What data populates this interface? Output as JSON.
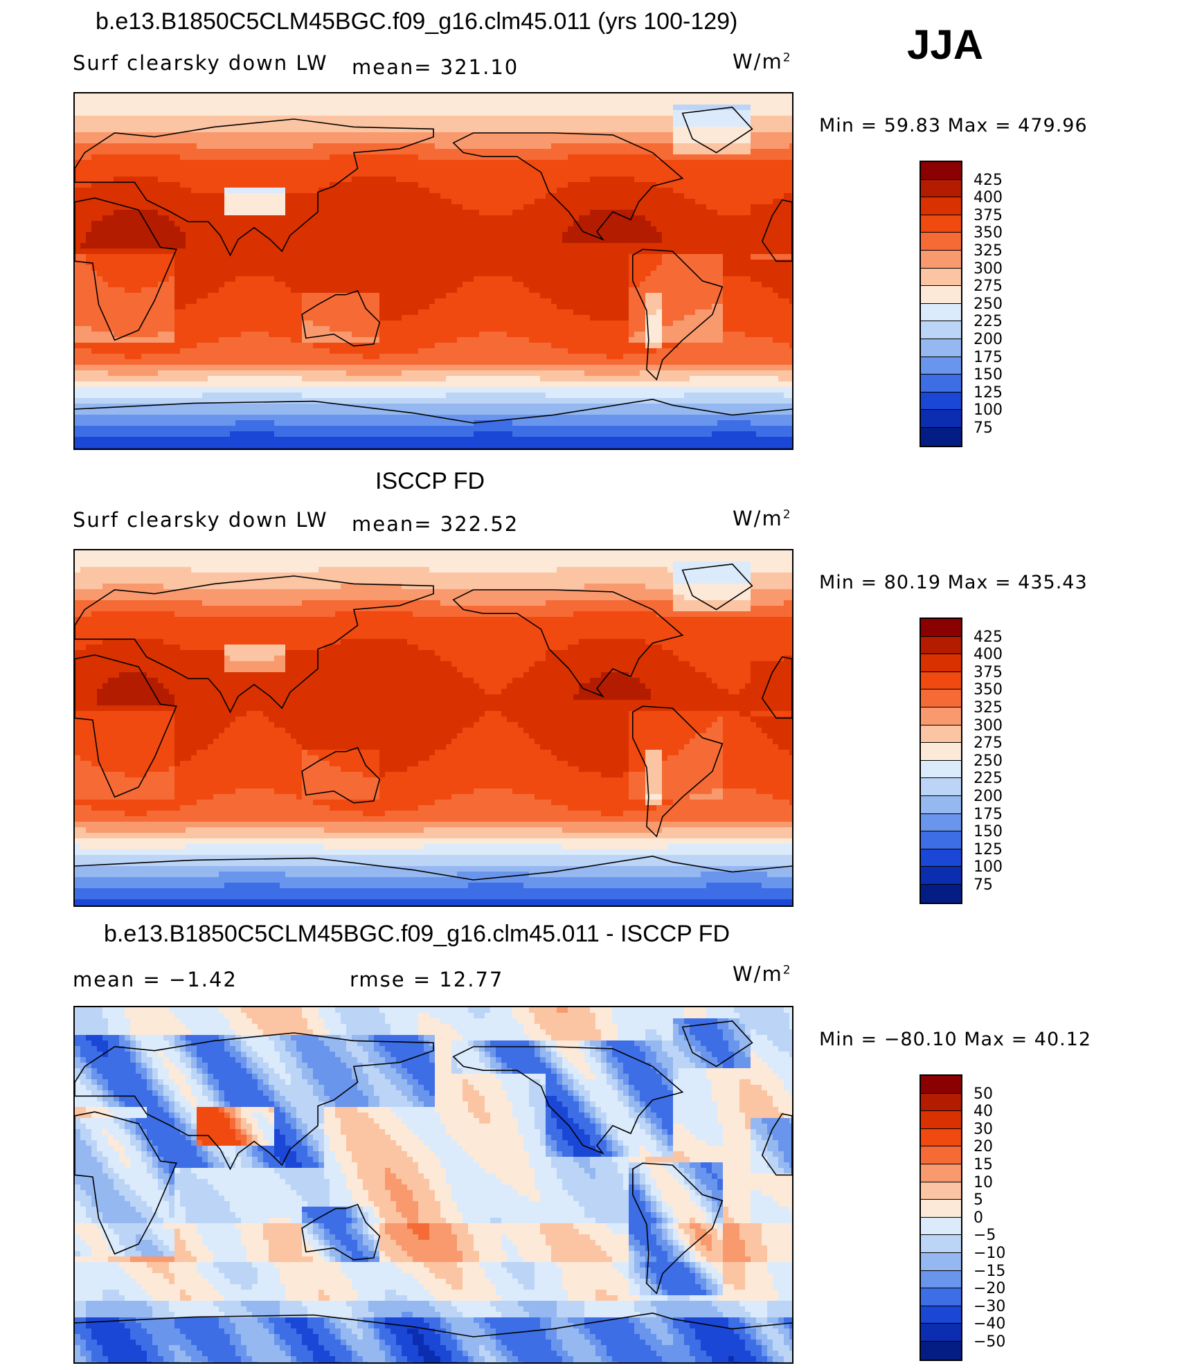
{
  "season": "JJA",
  "panels": [
    {
      "title": "b.e13.B1850C5CLM45BGC.f09_g16.clm45.011 (yrs 100-129)",
      "variable": "Surf clearsky down LW",
      "stat1": "mean= 321.10",
      "stat2": "",
      "units": "W/m",
      "units_sup": "2",
      "minmax": "Min =   59.83 Max = 479.96",
      "scale": "abs",
      "field": {
        "base": 318,
        "amp": 70,
        "pole_n": 250,
        "pole_s": 95,
        "land_dry": 40,
        "tibet": 120
      }
    },
    {
      "title": "ISCCP FD",
      "variable": "Surf clearsky down LW",
      "stat1": "mean= 322.52",
      "stat2": "",
      "units": "W/m",
      "units_sup": "2",
      "minmax": "Min =   80.19 Max = 435.43",
      "scale": "abs",
      "field": {
        "base": 320,
        "amp": 65,
        "pole_n": 255,
        "pole_s": 110,
        "land_dry": 25,
        "tibet": 80
      }
    },
    {
      "title": "b.e13.B1850C5CLM45BGC.f09_g16.clm45.011 - ISCCP FD",
      "variable": "",
      "stat1": "mean =   −1.42",
      "stat2": "rmse =   12.77",
      "units": "W/m",
      "units_sup": "2",
      "minmax": "Min = −80.10 Max =   40.12",
      "scale": "diff",
      "field": {
        "base": 0,
        "amp": 0,
        "pole_n": 0,
        "pole_s": 0,
        "land_dry": 0,
        "tibet": 0
      }
    }
  ],
  "legends": {
    "abs": {
      "labels": [
        "425",
        "400",
        "375",
        "350",
        "325",
        "300",
        "275",
        "250",
        "225",
        "200",
        "175",
        "150",
        "125",
        "100",
        "75"
      ],
      "levels": [
        75,
        100,
        125,
        150,
        175,
        200,
        225,
        250,
        275,
        300,
        325,
        350,
        375,
        400,
        425
      ],
      "colors": [
        "#8b0000",
        "#b41c00",
        "#d93200",
        "#f04a10",
        "#f66b35",
        "#f99a6e",
        "#fbc4a2",
        "#fde9d8",
        "#dcebfb",
        "#bcd5f7",
        "#95b8f1",
        "#6a95ec",
        "#3d6ee6",
        "#1a47d6",
        "#0b2eb0",
        "#041d84"
      ]
    },
    "diff": {
      "labels": [
        "50",
        "40",
        "30",
        "20",
        "15",
        "10",
        "5",
        "0",
        "−5",
        "−10",
        "−15",
        "−20",
        "−30",
        "−40",
        "−50"
      ],
      "levels": [
        -50,
        -40,
        -30,
        -20,
        -15,
        -10,
        -5,
        0,
        5,
        10,
        15,
        20,
        30,
        40,
        50
      ],
      "colors": [
        "#8b0000",
        "#b41c00",
        "#d93200",
        "#f04a10",
        "#f66b35",
        "#f99a6e",
        "#fbc4a2",
        "#fde9d8",
        "#dcebfb",
        "#bcd5f7",
        "#95b8f1",
        "#6a95ec",
        "#3d6ee6",
        "#1a47d6",
        "#0b2eb0",
        "#041d84"
      ]
    }
  }
}
